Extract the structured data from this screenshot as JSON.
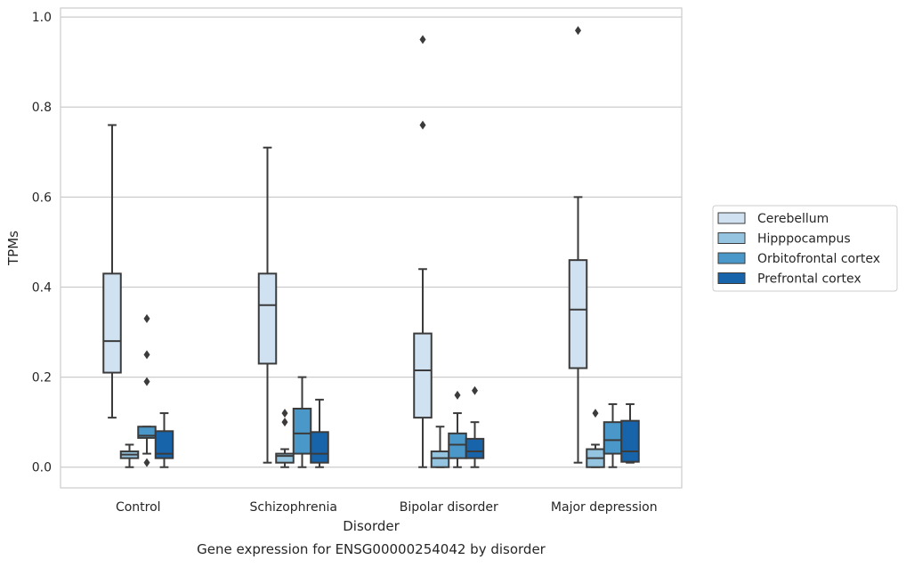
{
  "chart_data": {
    "type": "box",
    "title": "",
    "caption": "Gene expression for ENSG00000254042 by disorder",
    "xlabel": "Disorder",
    "ylabel": "TPMs",
    "ylim": [
      -0.046,
      1.02
    ],
    "yticks": [
      "0.0",
      "0.2",
      "0.4",
      "0.6",
      "0.8",
      "1.0"
    ],
    "ytick_values": [
      0.0,
      0.2,
      0.4,
      0.6,
      0.8,
      1.0
    ],
    "grid": "horizontal",
    "legend_position": "right",
    "categories": [
      "Control",
      "Schizophrenia",
      "Bipolar disorder",
      "Major depression"
    ],
    "series": [
      {
        "name": "Cerebellum",
        "color": "#d0e1f2",
        "boxes": [
          {
            "whisker_low": 0.11,
            "q1": 0.21,
            "median": 0.28,
            "q3": 0.43,
            "whisker_high": 0.76,
            "outliers": []
          },
          {
            "whisker_low": 0.01,
            "q1": 0.23,
            "median": 0.36,
            "q3": 0.43,
            "whisker_high": 0.71,
            "outliers": []
          },
          {
            "whisker_low": 0.0,
            "q1": 0.11,
            "median": 0.215,
            "q3": 0.297,
            "whisker_high": 0.44,
            "outliers": [
              0.76,
              0.95
            ]
          },
          {
            "whisker_low": 0.01,
            "q1": 0.22,
            "median": 0.35,
            "q3": 0.46,
            "whisker_high": 0.6,
            "outliers": [
              0.97
            ]
          }
        ]
      },
      {
        "name": "Hipppocampus",
        "color": "#94c4df",
        "boxes": [
          {
            "whisker_low": 0.0,
            "q1": 0.02,
            "median": 0.028,
            "q3": 0.035,
            "whisker_high": 0.05,
            "outliers": []
          },
          {
            "whisker_low": 0.0,
            "q1": 0.01,
            "median": 0.025,
            "q3": 0.03,
            "whisker_high": 0.04,
            "outliers": [
              0.1,
              0.12
            ]
          },
          {
            "whisker_low": 0.0,
            "q1": 0.0,
            "median": 0.02,
            "q3": 0.035,
            "whisker_high": 0.09,
            "outliers": []
          },
          {
            "whisker_low": 0.0,
            "q1": 0.0,
            "median": 0.02,
            "q3": 0.04,
            "whisker_high": 0.05,
            "outliers": [
              0.12
            ]
          }
        ]
      },
      {
        "name": "Orbitofrontal cortex",
        "color": "#4a98c9",
        "boxes": [
          {
            "whisker_low": 0.03,
            "q1": 0.065,
            "median": 0.07,
            "q3": 0.09,
            "whisker_high": 0.09,
            "outliers": [
              0.01,
              0.19,
              0.25,
              0.33
            ]
          },
          {
            "whisker_low": 0.0,
            "q1": 0.03,
            "median": 0.075,
            "q3": 0.13,
            "whisker_high": 0.2,
            "outliers": []
          },
          {
            "whisker_low": 0.0,
            "q1": 0.02,
            "median": 0.05,
            "q3": 0.075,
            "whisker_high": 0.12,
            "outliers": [
              0.16
            ]
          },
          {
            "whisker_low": 0.0,
            "q1": 0.03,
            "median": 0.06,
            "q3": 0.1,
            "whisker_high": 0.14,
            "outliers": []
          }
        ]
      },
      {
        "name": "Prefrontal cortex",
        "color": "#1764ab",
        "boxes": [
          {
            "whisker_low": 0.0,
            "q1": 0.02,
            "median": 0.03,
            "q3": 0.08,
            "whisker_high": 0.12,
            "outliers": []
          },
          {
            "whisker_low": 0.0,
            "q1": 0.01,
            "median": 0.03,
            "q3": 0.078,
            "whisker_high": 0.15,
            "outliers": []
          },
          {
            "whisker_low": 0.0,
            "q1": 0.02,
            "median": 0.035,
            "q3": 0.063,
            "whisker_high": 0.1,
            "outliers": [
              0.17
            ]
          },
          {
            "whisker_low": 0.01,
            "q1": 0.012,
            "median": 0.035,
            "q3": 0.103,
            "whisker_high": 0.14,
            "outliers": []
          }
        ]
      }
    ]
  }
}
